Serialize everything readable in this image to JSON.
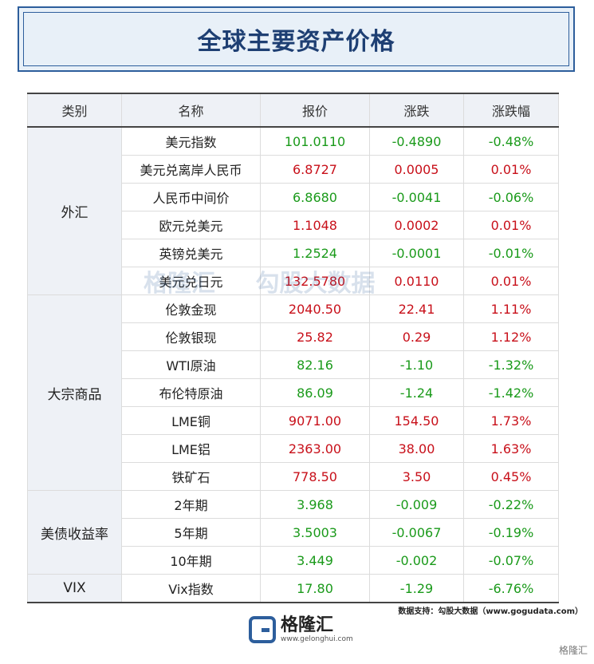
{
  "title": "全球主要资产价格",
  "headers": [
    "类别",
    "名称",
    "报价",
    "涨跌",
    "涨跌幅"
  ],
  "groups": [
    {
      "category": "外汇",
      "rows": [
        {
          "name": "美元指数",
          "price": "101.0110",
          "change": "-0.4890",
          "pct": "-0.48%",
          "price_color": "g",
          "change_color": "g",
          "pct_color": "g"
        },
        {
          "name": "美元兑离岸人民币",
          "price": "6.8727",
          "change": "0.0005",
          "pct": "0.01%",
          "price_color": "r",
          "change_color": "r",
          "pct_color": "r"
        },
        {
          "name": "人民币中间价",
          "price": "6.8680",
          "change": "-0.0041",
          "pct": "-0.06%",
          "price_color": "g",
          "change_color": "g",
          "pct_color": "g"
        },
        {
          "name": "欧元兑美元",
          "price": "1.1048",
          "change": "0.0002",
          "pct": "0.01%",
          "price_color": "r",
          "change_color": "r",
          "pct_color": "r"
        },
        {
          "name": "英镑兑美元",
          "price": "1.2524",
          "change": "-0.0001",
          "pct": "-0.01%",
          "price_color": "g",
          "change_color": "g",
          "pct_color": "g"
        },
        {
          "name": "美元兑日元",
          "price": "132.5780",
          "change": "0.0110",
          "pct": "0.01%",
          "price_color": "r",
          "change_color": "r",
          "pct_color": "r"
        }
      ]
    },
    {
      "category": "大宗商品",
      "rows": [
        {
          "name": "伦敦金现",
          "price": "2040.50",
          "change": "22.41",
          "pct": "1.11%",
          "price_color": "r",
          "change_color": "r",
          "pct_color": "r"
        },
        {
          "name": "伦敦银现",
          "price": "25.82",
          "change": "0.29",
          "pct": "1.12%",
          "price_color": "r",
          "change_color": "r",
          "pct_color": "r"
        },
        {
          "name": "WTI原油",
          "price": "82.16",
          "change": "-1.10",
          "pct": "-1.32%",
          "price_color": "g",
          "change_color": "g",
          "pct_color": "g"
        },
        {
          "name": "布伦特原油",
          "price": "86.09",
          "change": "-1.24",
          "pct": "-1.42%",
          "price_color": "g",
          "change_color": "g",
          "pct_color": "g"
        },
        {
          "name": "LME铜",
          "price": "9071.00",
          "change": "154.50",
          "pct": "1.73%",
          "price_color": "r",
          "change_color": "r",
          "pct_color": "r"
        },
        {
          "name": "LME铝",
          "price": "2363.00",
          "change": "38.00",
          "pct": "1.63%",
          "price_color": "r",
          "change_color": "r",
          "pct_color": "r"
        },
        {
          "name": "铁矿石",
          "price": "778.50",
          "change": "3.50",
          "pct": "0.45%",
          "price_color": "r",
          "change_color": "r",
          "pct_color": "r"
        }
      ]
    },
    {
      "category": "美债收益率",
      "rows": [
        {
          "name": "2年期",
          "price": "3.968",
          "change": "-0.009",
          "pct": "-0.22%",
          "price_color": "g",
          "change_color": "g",
          "pct_color": "g"
        },
        {
          "name": "5年期",
          "price": "3.5003",
          "change": "-0.0067",
          "pct": "-0.19%",
          "price_color": "g",
          "change_color": "g",
          "pct_color": "g"
        },
        {
          "name": "10年期",
          "price": "3.449",
          "change": "-0.002",
          "pct": "-0.07%",
          "price_color": "g",
          "change_color": "g",
          "pct_color": "g"
        }
      ]
    },
    {
      "category": "VIX",
      "rows": [
        {
          "name": "Vix指数",
          "price": "17.80",
          "change": "-1.29",
          "pct": "-6.76%",
          "price_color": "g",
          "change_color": "g",
          "pct_color": "g"
        }
      ]
    }
  ],
  "source": "数据支持：勾股大数据（www.gogudata.com）",
  "logo": {
    "name": "格隆汇",
    "url": "www.gelonghui.com"
  },
  "watermark": [
    "格隆汇",
    "勾股大数据"
  ],
  "corner_mark": "格隆汇",
  "colors": {
    "up": "#c8101a",
    "down": "#1a9a1a",
    "brand": "#2d5e9c"
  }
}
